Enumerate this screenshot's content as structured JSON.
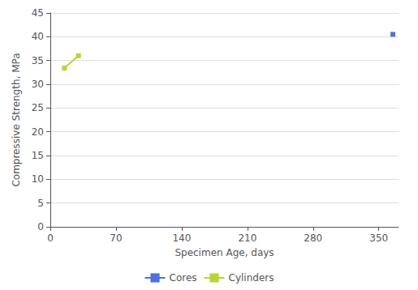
{
  "chart_data": {
    "type": "line",
    "xlabel": "Specimen Age, days",
    "ylabel": "Compressive Strength, MPa",
    "series": [
      {
        "name": "Cores",
        "x": [
          365
        ],
        "values": [
          40.5
        ],
        "marker": "square",
        "line_style": "solid"
      },
      {
        "name": "Cylinders",
        "x": [
          15,
          30
        ],
        "values": [
          33.4,
          36.0
        ],
        "marker": "square",
        "line_style": "solid"
      }
    ],
    "xlim": [
      0,
      371
    ],
    "ylim": [
      0,
      45
    ],
    "xticks": [
      0,
      70,
      140,
      210,
      280,
      350
    ],
    "yticks": [
      0,
      5,
      10,
      15,
      20,
      25,
      30,
      35,
      40,
      45
    ],
    "grid": "y",
    "legend": "bottom"
  }
}
